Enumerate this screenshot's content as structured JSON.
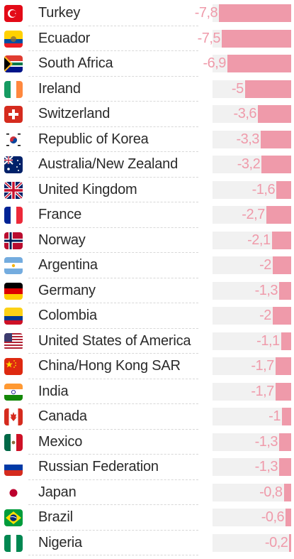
{
  "chart_data": {
    "type": "bar",
    "orientation": "horizontal",
    "categories": [
      "Turkey",
      "Ecuador",
      "South Africa",
      "Ireland",
      "Switzerland",
      "Republic of Korea",
      "Australia/New Zealand",
      "United Kingdom",
      "France",
      "Norway",
      "Argentina",
      "Germany",
      "Colombia",
      "United States of America",
      "China/Hong Kong SAR",
      "India",
      "Canada",
      "Mexico",
      "Russian Federation",
      "Japan",
      "Brazil",
      "Nigeria"
    ],
    "values": [
      -7.8,
      -7.5,
      -6.9,
      -5,
      -3.6,
      -3.3,
      -3.2,
      -1.6,
      -2.7,
      -2.1,
      -2,
      -1.3,
      -2,
      -1.1,
      -1.7,
      -1.7,
      -1,
      -1.3,
      -1.3,
      -0.8,
      -0.6,
      -0.2
    ],
    "value_labels": [
      "-7,8",
      "-7,5",
      "-6,9",
      "-5",
      "-3,6",
      "-3,3",
      "-3,2",
      "-1,6",
      "-2,7",
      "-2,1",
      "-2",
      "-1,3",
      "-2",
      "-1,1",
      "-1,7",
      "-1,7",
      "-1",
      "-1,3",
      "-1,3",
      "-0,8",
      "-0,6",
      "-0,2"
    ],
    "flags": [
      "turkey-flag-icon",
      "ecuador-flag-icon",
      "south-africa-flag-icon",
      "ireland-flag-icon",
      "switzerland-flag-icon",
      "korea-flag-icon",
      "australia-flag-icon",
      "uk-flag-icon",
      "france-flag-icon",
      "norway-flag-icon",
      "argentina-flag-icon",
      "germany-flag-icon",
      "colombia-flag-icon",
      "usa-flag-icon",
      "china-flag-icon",
      "india-flag-icon",
      "canada-flag-icon",
      "mexico-flag-icon",
      "russia-flag-icon",
      "japan-flag-icon",
      "brazil-flag-icon",
      "nigeria-flag-icon"
    ],
    "xlim": [
      -8.5,
      0
    ],
    "bar_color": "#ef9aaa",
    "track_color": "#f1f1f1",
    "grid": false
  }
}
